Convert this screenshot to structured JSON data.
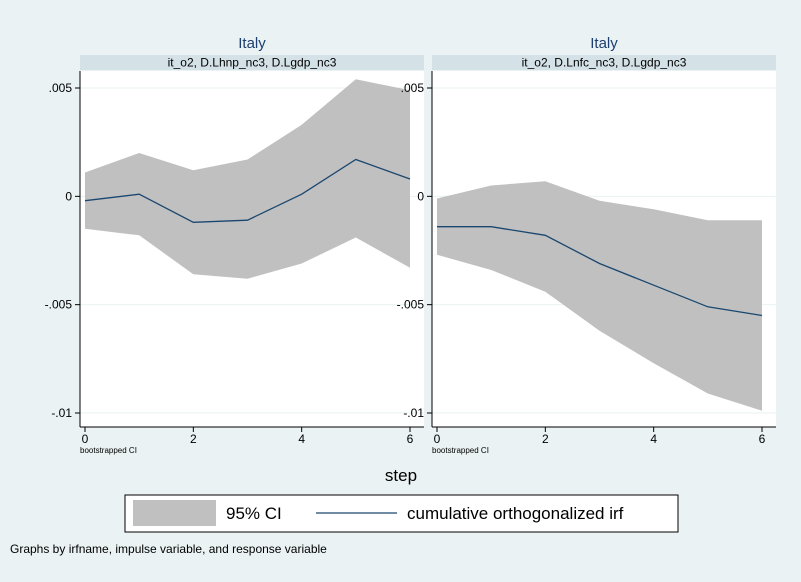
{
  "chart_data": [
    {
      "type": "line",
      "title": "Italy",
      "subtitle": "it_o2, D.Lhnp_nc3, D.Lgdp_nc3",
      "note": "bootstrapped CI",
      "x": [
        0,
        1,
        2,
        3,
        4,
        5,
        6
      ],
      "xticks": [
        0,
        2,
        4,
        6
      ],
      "xlim": [
        0,
        6
      ],
      "series": [
        {
          "name": "cumulative orthogonalized irf",
          "values": [
            -0.0002,
            0.0001,
            -0.0012,
            -0.0011,
            0.0001,
            0.0017,
            0.0008
          ]
        }
      ],
      "ci_lower": [
        -0.0015,
        -0.0018,
        -0.0036,
        -0.0038,
        -0.0031,
        -0.0019,
        -0.0033
      ],
      "ci_upper": [
        0.0011,
        0.002,
        0.0012,
        0.0017,
        0.0033,
        0.0054,
        0.0049
      ],
      "yticks": [
        ".005",
        "0",
        "-.005",
        "-.01"
      ],
      "ytick_values": [
        0.005,
        0,
        -0.005,
        -0.01
      ],
      "ylim": [
        -0.0105,
        0.0055
      ],
      "grid": true
    },
    {
      "type": "line",
      "title": "Italy",
      "subtitle": "it_o2, D.Lnfc_nc3, D.Lgdp_nc3",
      "note": "bootstrapped CI",
      "x": [
        0,
        1,
        2,
        3,
        4,
        5,
        6
      ],
      "xticks": [
        0,
        2,
        4,
        6
      ],
      "xlim": [
        0,
        6
      ],
      "series": [
        {
          "name": "cumulative orthogonalized irf",
          "values": [
            -0.0014,
            -0.0014,
            -0.0018,
            -0.0031,
            -0.0041,
            -0.0051,
            -0.0055
          ]
        }
      ],
      "ci_lower": [
        -0.0027,
        -0.0034,
        -0.0044,
        -0.0062,
        -0.0077,
        -0.0091,
        -0.0099
      ],
      "ci_upper": [
        -0.0001,
        0.0005,
        0.0007,
        -0.0002,
        -0.0006,
        -0.0011,
        -0.0011
      ],
      "yticks": [
        ".005",
        "0",
        "-.005",
        "-.01"
      ],
      "ytick_values": [
        0.005,
        0,
        -0.005,
        -0.01
      ],
      "ylim": [
        -0.0105,
        0.0055
      ],
      "grid": true
    }
  ],
  "xlabel": "step",
  "legend": {
    "ci_label": "95% CI",
    "line_label": "cumulative orthogonalized irf",
    "placement": "bottom"
  },
  "caption": "Graphs by irfname, impulse variable, and response variable",
  "colors": {
    "background": "#eaf2f3",
    "plot_bg": "#ffffff",
    "band": "#c0c0c0",
    "line": "#1a476f",
    "subtitle_bar": "#d4e2e8",
    "title": "#1e3f6e",
    "grid": "#eaf2f3"
  }
}
